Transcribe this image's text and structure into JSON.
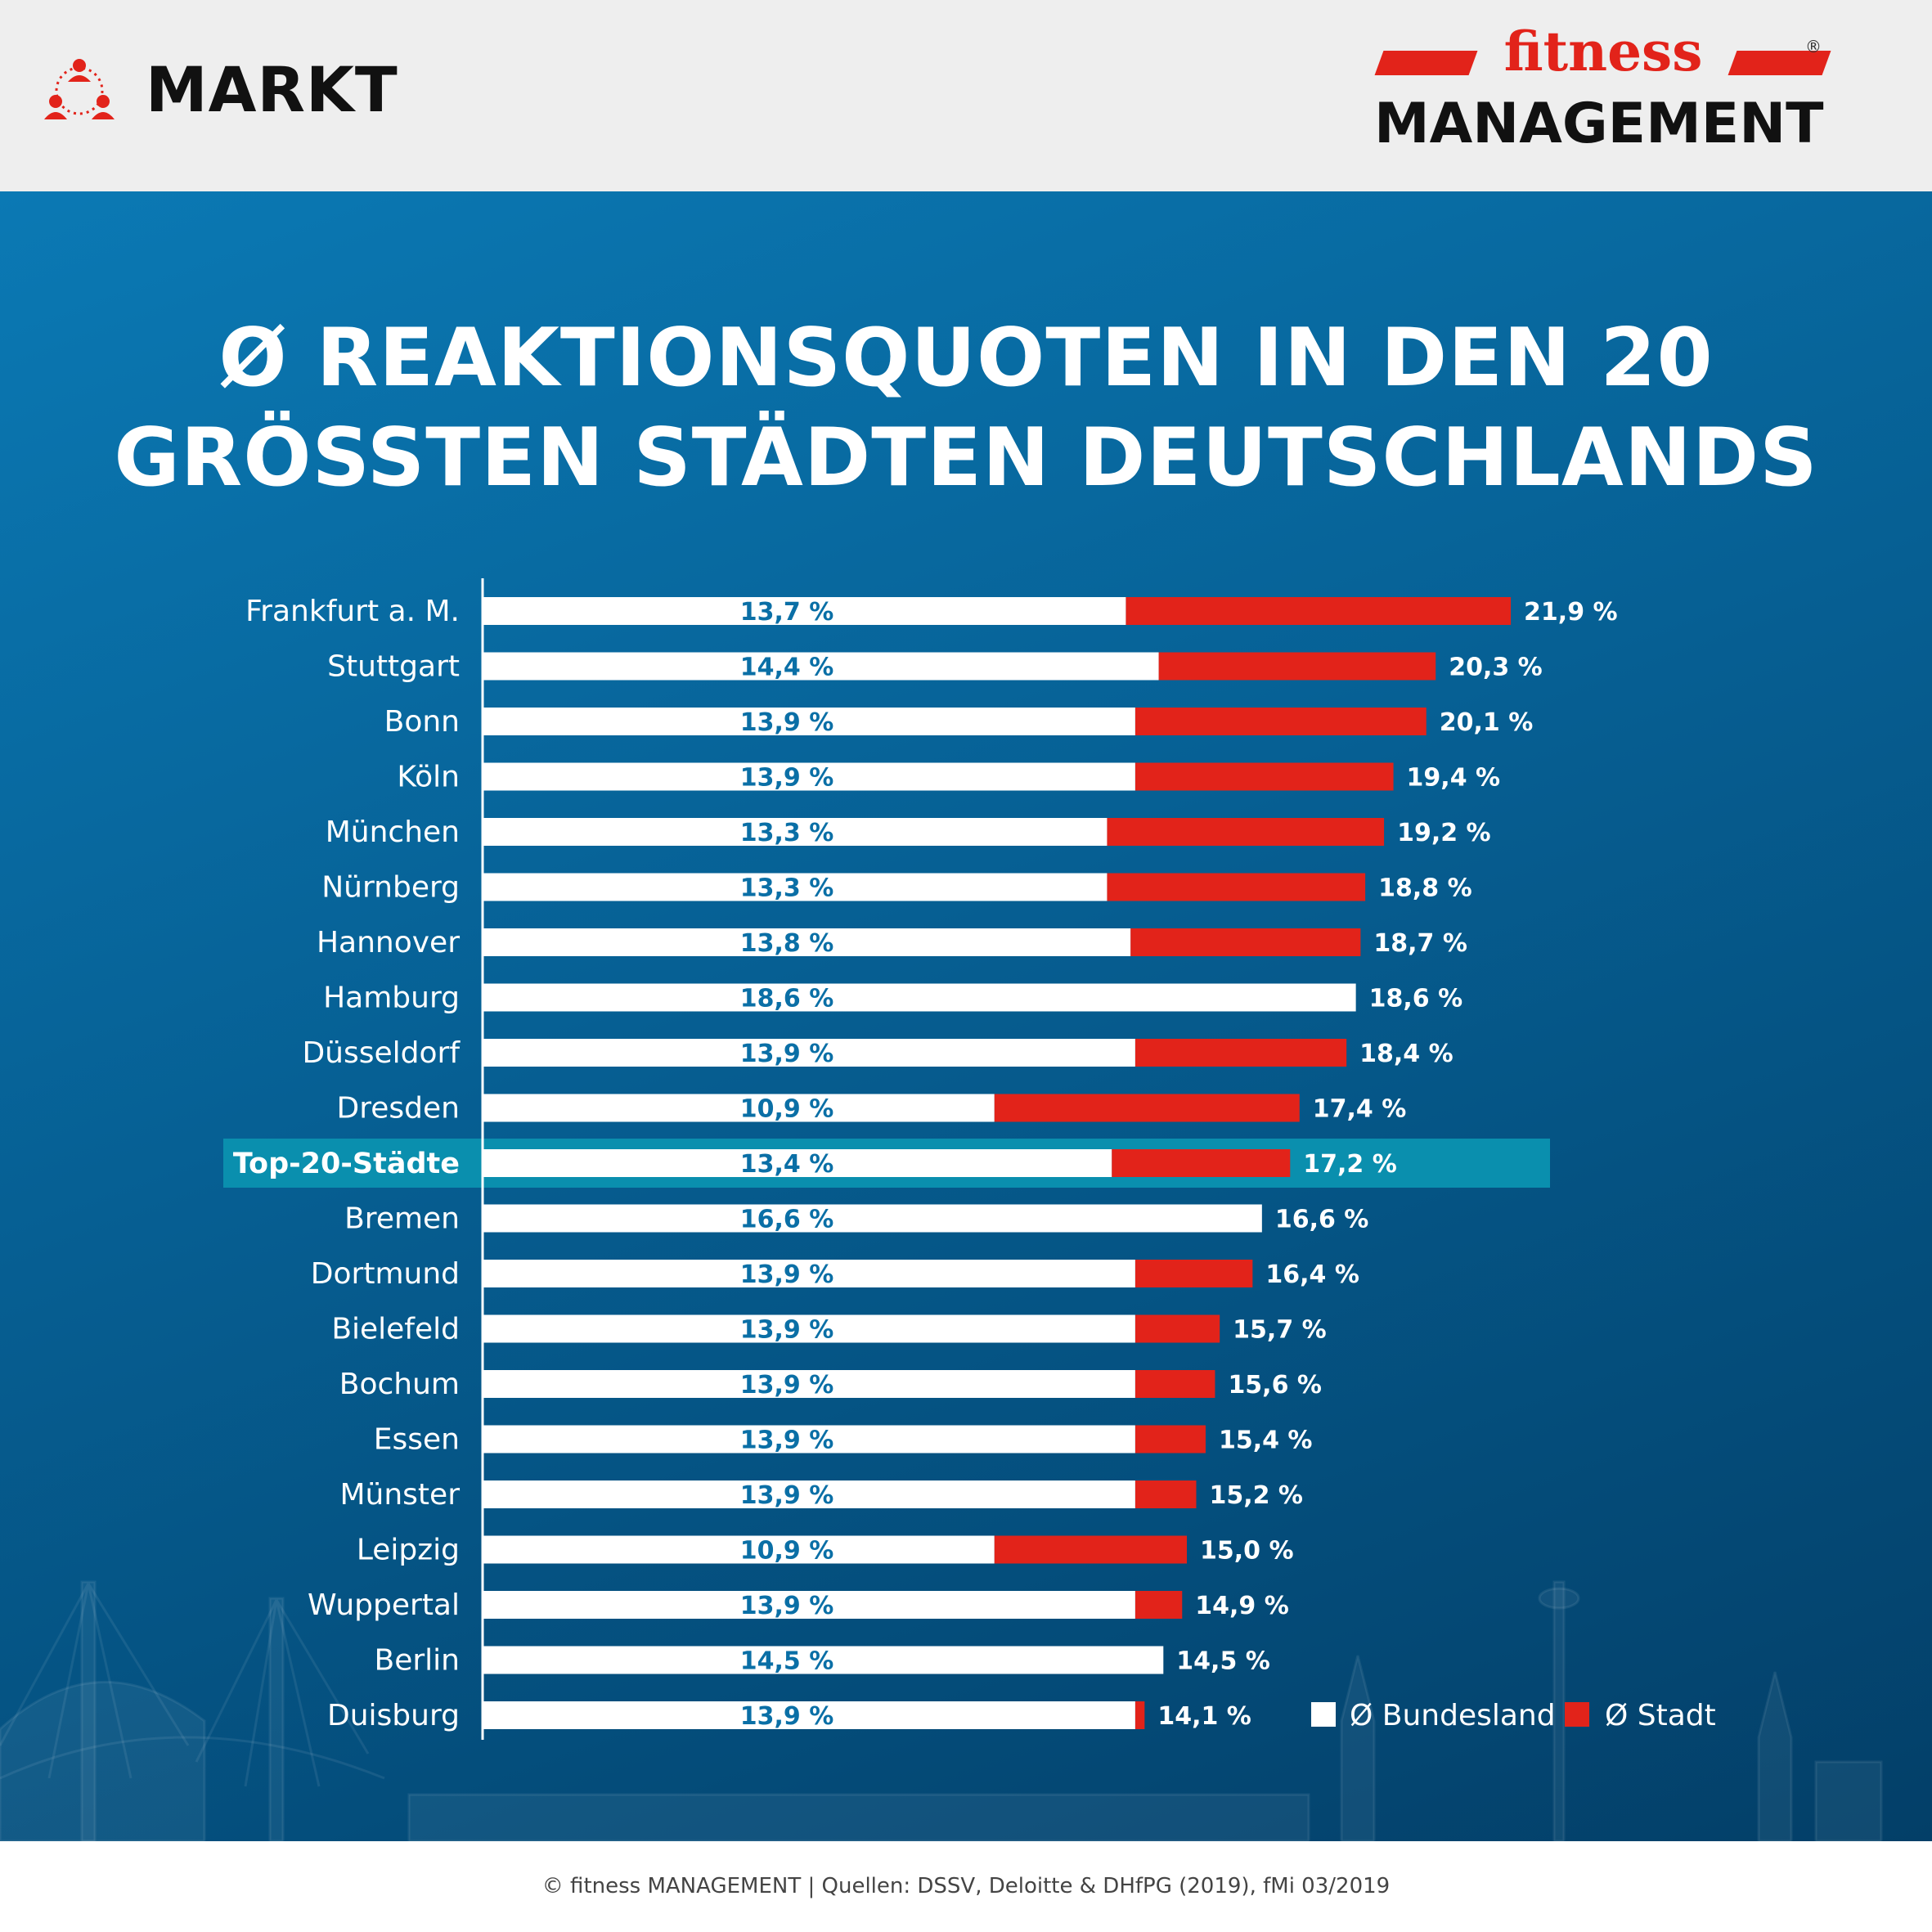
{
  "header": {
    "section_label": "MARKT",
    "brand_top": "fitness",
    "brand_bottom": "MANAGEMENT",
    "brand_reg": "®"
  },
  "title_lines": [
    "Ø REAKTIONSQUOTEN IN DEN 20",
    "GRÖSSTEN STÄDTEN DEUTSCHLANDS"
  ],
  "footer": {
    "text": "© fitness MANAGEMENT  |  Quellen: DSSV, Deloitte & DHfPG (2019), fMi 03/2019"
  },
  "colors": {
    "bundesland": "#ffffff",
    "stadt": "#e2231a",
    "highlight_row": "#0a8fae",
    "inner_label": "#0a6fa6"
  },
  "icons": {
    "section": "people-network-icon"
  },
  "chart_data": {
    "type": "bar",
    "orientation": "horizontal",
    "categories": [
      "Frankfurt a. M.",
      "Stuttgart",
      "Bonn",
      "Köln",
      "München",
      "Nürnberg",
      "Hannover",
      "Hamburg",
      "Düsseldorf",
      "Dresden",
      "Top-20-Städte",
      "Bremen",
      "Dortmund",
      "Bielefeld",
      "Bochum",
      "Essen",
      "Münster",
      "Leipzig",
      "Wuppertal",
      "Berlin",
      "Duisburg"
    ],
    "highlight_category": "Top-20-Städte",
    "series": [
      {
        "name": "Ø Bundesland",
        "values": [
          13.7,
          14.4,
          13.9,
          13.9,
          13.3,
          13.3,
          13.8,
          18.6,
          13.9,
          10.9,
          13.4,
          16.6,
          13.9,
          13.9,
          13.9,
          13.9,
          13.9,
          10.9,
          13.9,
          14.5,
          13.9
        ],
        "labels": [
          "13,7 %",
          "14,4 %",
          "13,9 %",
          "13,9 %",
          "13,3 %",
          "13,3 %",
          "13,8 %",
          "18,6 %",
          "13,9 %",
          "10,9 %",
          "13,4 %",
          "16,6 %",
          "13,9 %",
          "13,9 %",
          "13,9 %",
          "13,9 %",
          "13,9 %",
          "10,9 %",
          "13,9 %",
          "14,5 %",
          "13,9 %"
        ]
      },
      {
        "name": "Ø Stadt",
        "values": [
          21.9,
          20.3,
          20.1,
          19.4,
          19.2,
          18.8,
          18.7,
          18.6,
          18.4,
          17.4,
          17.2,
          16.6,
          16.4,
          15.7,
          15.6,
          15.4,
          15.2,
          15.0,
          14.9,
          14.5,
          14.1
        ],
        "labels": [
          "21,9 %",
          "20,3 %",
          "20,1 %",
          "19,4 %",
          "19,2 %",
          "18,8 %",
          "18,7 %",
          "18,6 %",
          "18,4 %",
          "17,4 %",
          "17,2 %",
          "16,6 %",
          "16,4 %",
          "15,7 %",
          "15,6 %",
          "15,4 %",
          "15,2 %",
          "15,0 %",
          "14,9 %",
          "14,5 %",
          "14,1 %"
        ]
      }
    ],
    "xlim": [
      0,
      25
    ],
    "legend": {
      "position": "bottom-right",
      "entries": [
        "Ø Bundesland",
        "Ø Stadt"
      ]
    }
  }
}
